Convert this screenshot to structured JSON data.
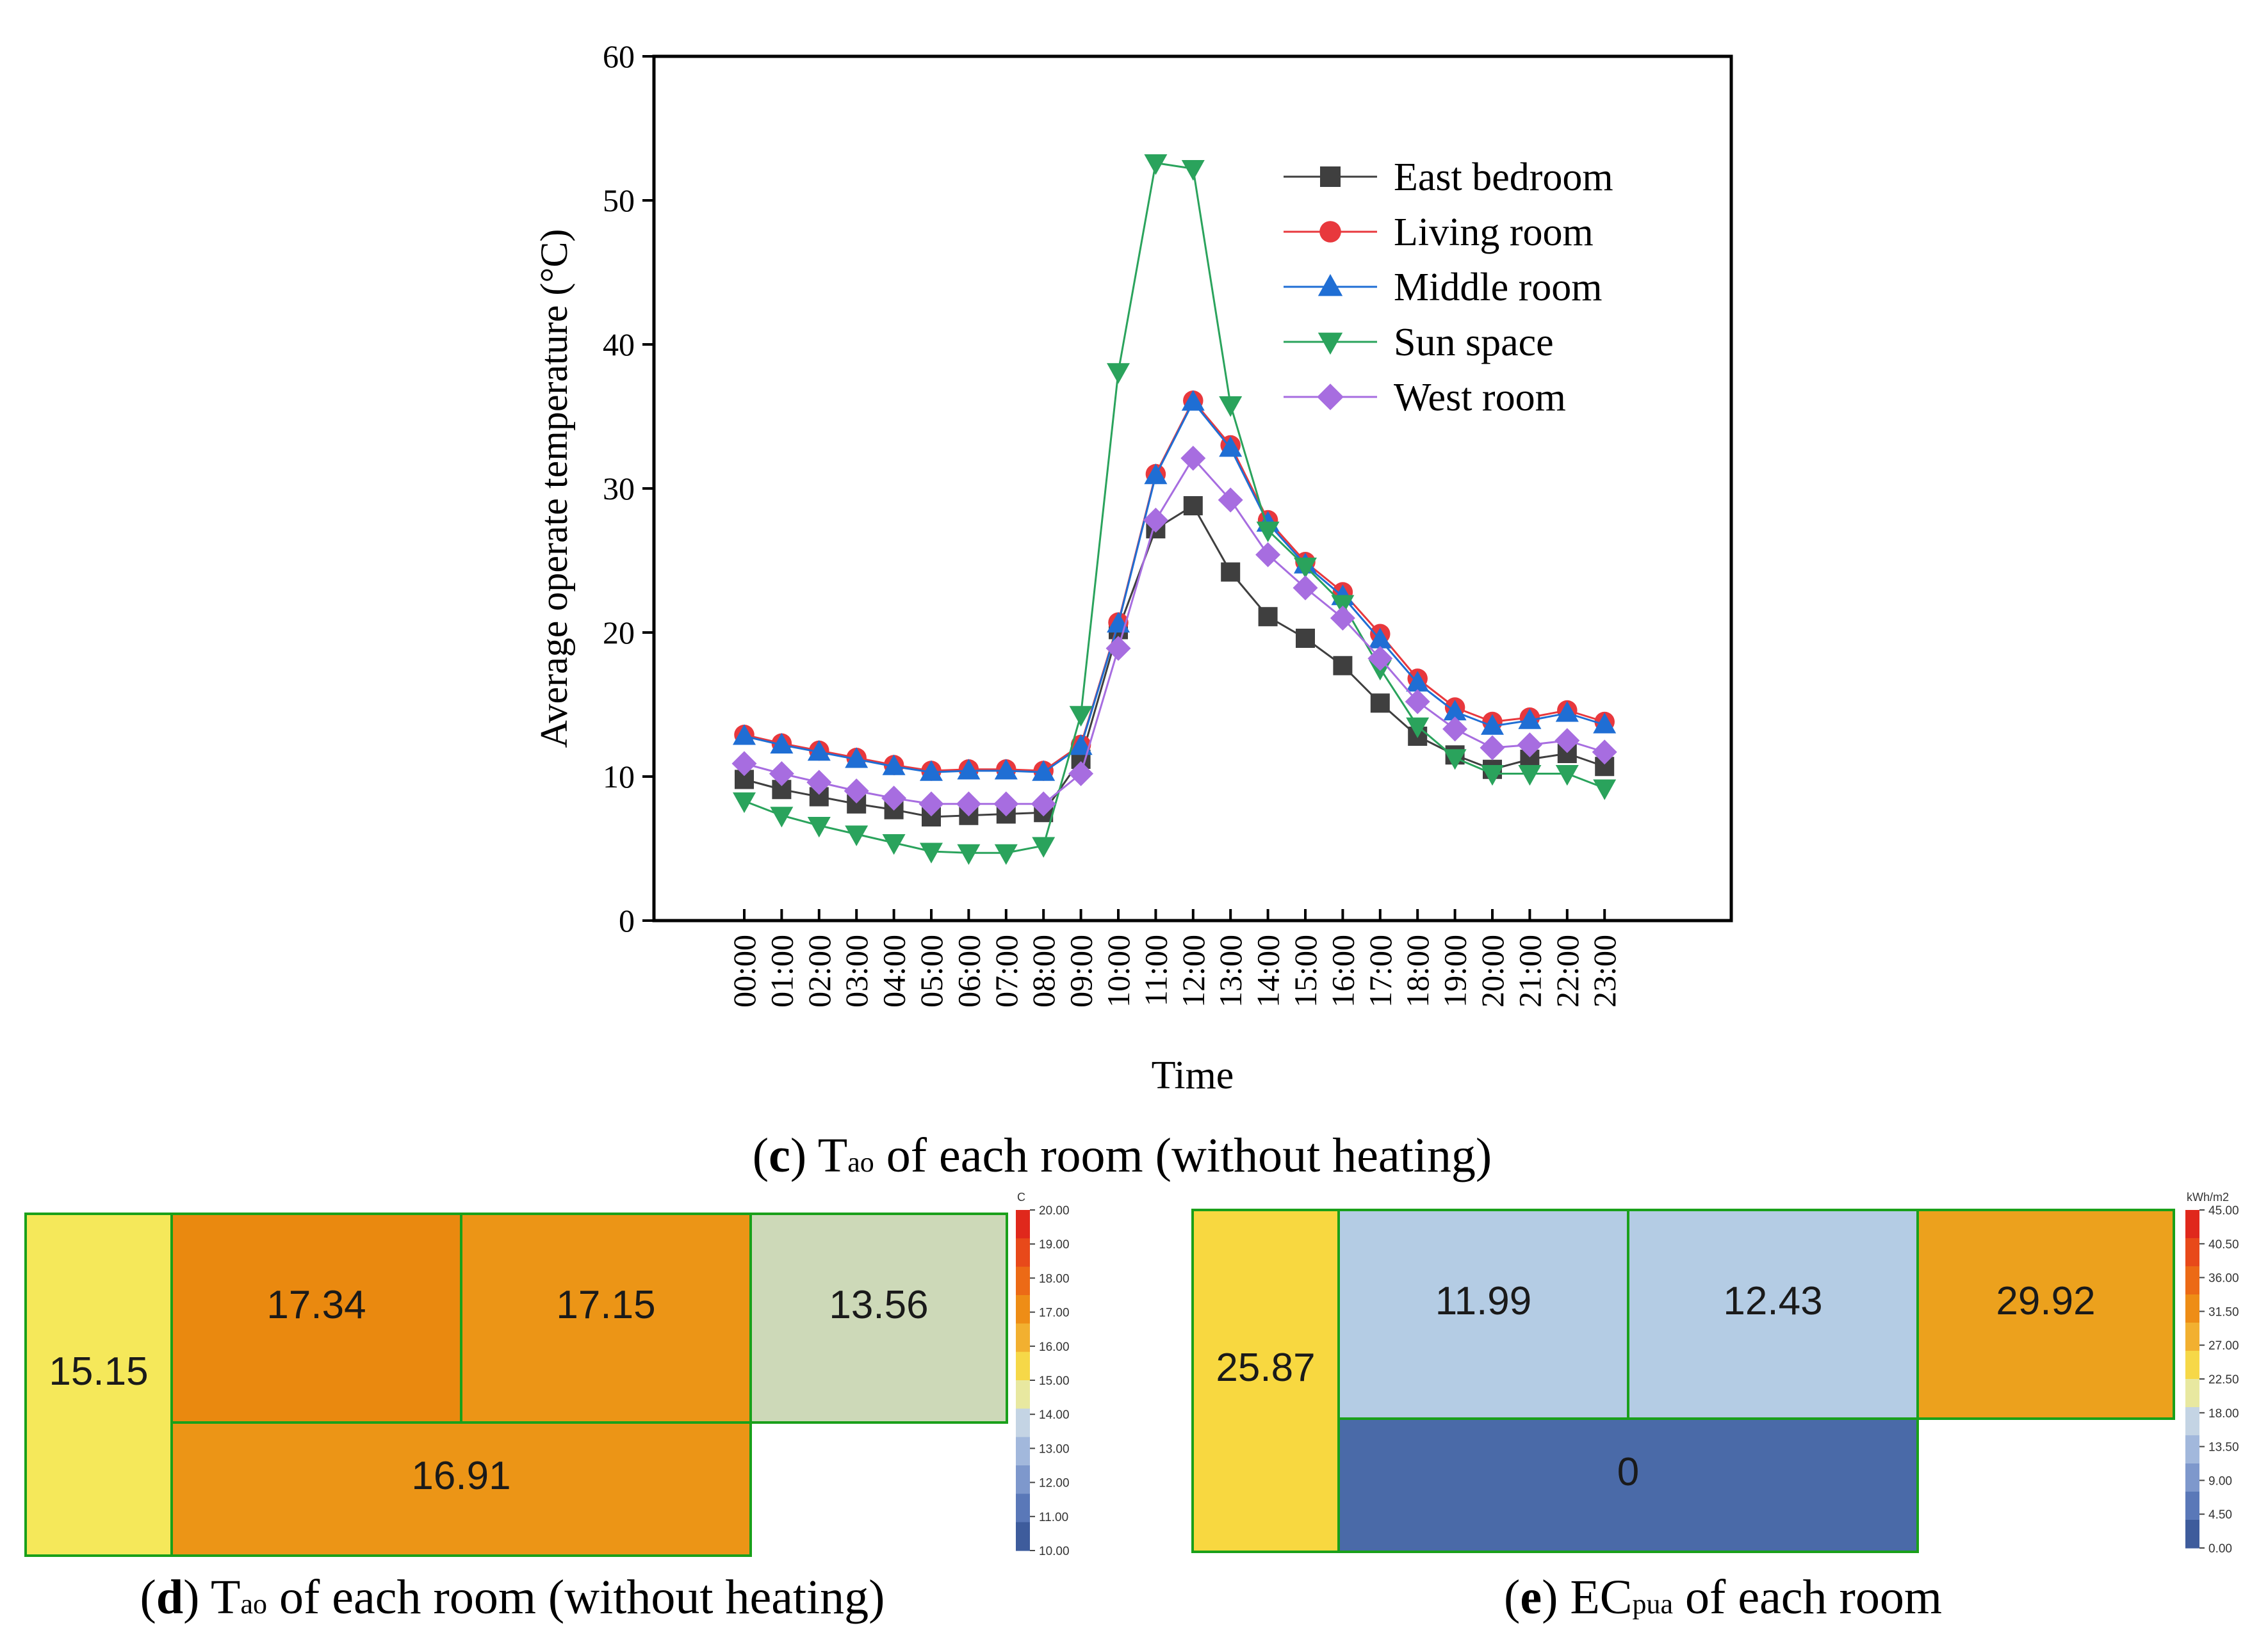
{
  "colors": {
    "east": "#3f3f3f",
    "living": "#e8383d",
    "middle": "#1f6ed4",
    "sun": "#2aa35c",
    "west": "#a76de0",
    "grid_border": "#1aa01a"
  },
  "chart_data": [
    {
      "type": "line",
      "title": "",
      "caption_letter": "c",
      "caption_main": "T",
      "caption_sub": "ao",
      "caption_rest": " of each room (without heating)",
      "xlabel": "Time",
      "ylabel": "Average operate temperature (°C)",
      "ylim": [
        0,
        60
      ],
      "yticks": [
        0,
        10,
        20,
        30,
        40,
        50,
        60
      ],
      "categories": [
        "00:00",
        "01:00",
        "02:00",
        "03:00",
        "04:00",
        "05:00",
        "06:00",
        "07:00",
        "08:00",
        "09:00",
        "10:00",
        "11:00",
        "12:00",
        "13:00",
        "14:00",
        "15:00",
        "16:00",
        "17:00",
        "18:00",
        "19:00",
        "20:00",
        "21:00",
        "22:00",
        "23:00"
      ],
      "legend_position": "top-right",
      "series": [
        {
          "name": "East bedroom",
          "key": "east",
          "marker": "square",
          "values": [
            9.8,
            9.1,
            8.6,
            8.1,
            7.7,
            7.2,
            7.3,
            7.4,
            7.5,
            11.2,
            20.2,
            27.2,
            28.8,
            24.2,
            21.1,
            19.6,
            17.7,
            15.1,
            12.8,
            11.5,
            10.5,
            11.2,
            11.6,
            10.7
          ]
        },
        {
          "name": "Living room",
          "key": "living",
          "marker": "circle",
          "values": [
            12.9,
            12.3,
            11.8,
            11.3,
            10.8,
            10.4,
            10.5,
            10.5,
            10.4,
            12.2,
            20.7,
            31.0,
            36.1,
            33.0,
            27.8,
            24.9,
            22.8,
            19.9,
            16.8,
            14.8,
            13.8,
            14.1,
            14.6,
            13.8
          ]
        },
        {
          "name": "Middle room",
          "key": "middle",
          "marker": "triangle-up",
          "values": [
            12.8,
            12.2,
            11.7,
            11.2,
            10.7,
            10.3,
            10.4,
            10.4,
            10.3,
            12.1,
            20.6,
            30.9,
            36.0,
            32.8,
            27.6,
            24.7,
            22.5,
            19.5,
            16.5,
            14.5,
            13.5,
            13.9,
            14.4,
            13.6
          ]
        },
        {
          "name": "Sun space",
          "key": "sun",
          "marker": "triangle-down",
          "values": [
            8.3,
            7.3,
            6.6,
            6.0,
            5.4,
            4.8,
            4.7,
            4.7,
            5.2,
            14.3,
            38.1,
            52.6,
            52.2,
            35.8,
            27.1,
            24.6,
            22.0,
            17.5,
            13.5,
            11.3,
            10.2,
            10.2,
            10.2,
            9.2
          ]
        },
        {
          "name": "West room",
          "key": "west",
          "marker": "diamond",
          "values": [
            10.9,
            10.2,
            9.6,
            9.0,
            8.5,
            8.1,
            8.1,
            8.1,
            8.1,
            10.2,
            18.9,
            27.8,
            32.1,
            29.2,
            25.4,
            23.1,
            21.0,
            18.2,
            15.2,
            13.3,
            12.0,
            12.2,
            12.5,
            11.7
          ]
        }
      ]
    },
    {
      "type": "heatmap",
      "caption_letter": "d",
      "caption_main": "T",
      "caption_sub": "ao",
      "caption_rest": " of each room (without heating)",
      "colorbar_unit": "C",
      "colorbar_ticks": [
        "20.00",
        "19.00",
        "18.00",
        "17.00",
        "16.00",
        "15.00",
        "14.00",
        "13.00",
        "12.00",
        "11.00",
        "10.00"
      ],
      "rooms": [
        {
          "name": "west-room",
          "label": "15.15",
          "value": 15.15,
          "color": "#f5e85a"
        },
        {
          "name": "east-bedroom",
          "label": "17.34",
          "value": 17.34,
          "color": "#ea890f"
        },
        {
          "name": "living-room",
          "label": "17.15",
          "value": 17.15,
          "color": "#ec9516"
        },
        {
          "name": "middle-room",
          "label": "13.56",
          "value": 13.56,
          "color": "#cdd9b8"
        },
        {
          "name": "sun-space",
          "label": "16.91",
          "value": 16.91,
          "color": "#ec9516"
        }
      ]
    },
    {
      "type": "heatmap",
      "caption_letter": "e",
      "caption_main": "EC",
      "caption_sub": "pua",
      "caption_rest": " of each room",
      "colorbar_unit": "kWh/m2",
      "colorbar_ticks": [
        "45.00",
        "40.50",
        "36.00",
        "31.50",
        "27.00",
        "22.50",
        "18.00",
        "13.50",
        "9.00",
        "4.50",
        "0.00"
      ],
      "rooms": [
        {
          "name": "west-room",
          "label": "25.87",
          "value": 25.87,
          "color": "#f8d840"
        },
        {
          "name": "east-bedroom",
          "label": "11.99",
          "value": 11.99,
          "color": "#b4cce4"
        },
        {
          "name": "living-room",
          "label": "12.43",
          "value": 12.43,
          "color": "#b4cce4"
        },
        {
          "name": "middle-room",
          "label": "29.92",
          "value": 29.92,
          "color": "#eca11d"
        },
        {
          "name": "sun-space",
          "label": "0",
          "value": 0,
          "color": "#4a6aa8"
        }
      ]
    }
  ]
}
